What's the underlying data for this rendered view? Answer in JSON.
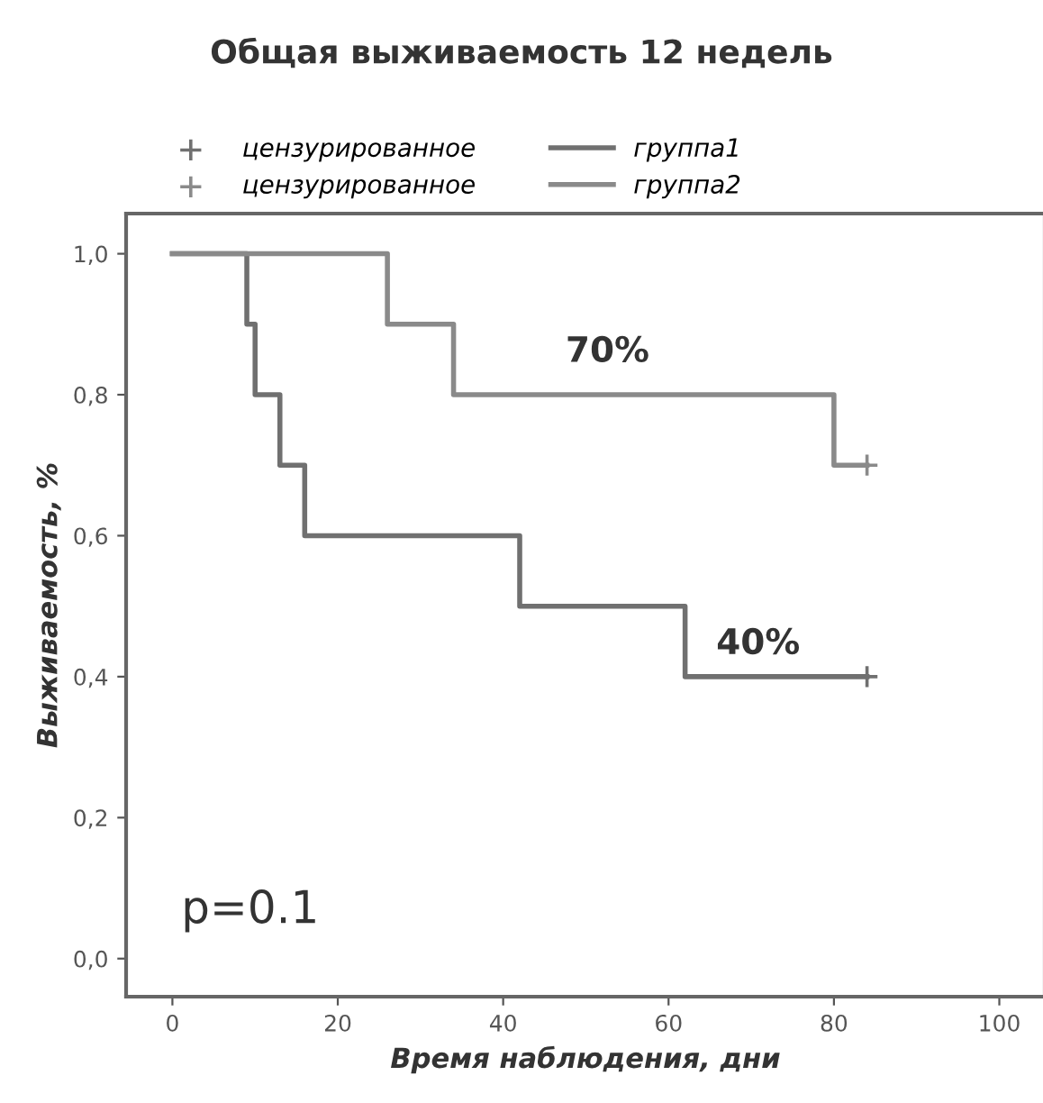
{
  "chart_data": {
    "type": "step",
    "title": "Общая выживаемость 12 недель",
    "xlabel": "Время наблюдения, дни",
    "ylabel": "Выживаемость, %",
    "series": [
      {
        "name": "цензурированное",
        "type": "scatter",
        "marker": "cross",
        "color": "#707070",
        "x": [
          84
        ],
        "values": [
          0.4
        ]
      },
      {
        "name": "цензурированное",
        "type": "scatter",
        "marker": "cross",
        "color": "#8a8a8a",
        "x": [
          84
        ],
        "values": [
          0.7
        ]
      },
      {
        "name": "группа1",
        "color": "#707070",
        "x": [
          0,
          9,
          10,
          13,
          16,
          42,
          62,
          84
        ],
        "values": [
          1.0,
          0.9,
          0.8,
          0.7,
          0.6,
          0.5,
          0.4,
          0.4
        ]
      },
      {
        "name": "группа2",
        "color": "#8a8a8a",
        "x": [
          0,
          26,
          34,
          80,
          84
        ],
        "values": [
          1.0,
          0.9,
          0.8,
          0.7,
          0.7
        ]
      }
    ],
    "annotations": [
      "70%",
      "40%",
      "p=0.1"
    ],
    "xlim": [
      -5.6,
      105.5
    ],
    "ylim": [
      -0.054,
      1.057
    ],
    "xticks": [
      0,
      20,
      40,
      60,
      80,
      100
    ],
    "yticks": [
      {
        "value": 0.0,
        "label": "0,0"
      },
      {
        "value": 0.2,
        "label": "0,2"
      },
      {
        "value": 0.4,
        "label": "0,4"
      },
      {
        "value": 0.6,
        "label": "0,6"
      },
      {
        "value": 0.8,
        "label": "0,8"
      },
      {
        "value": 1.0,
        "label": "1,0"
      }
    ],
    "grid": false,
    "legend": "top",
    "line_style": "solid"
  }
}
